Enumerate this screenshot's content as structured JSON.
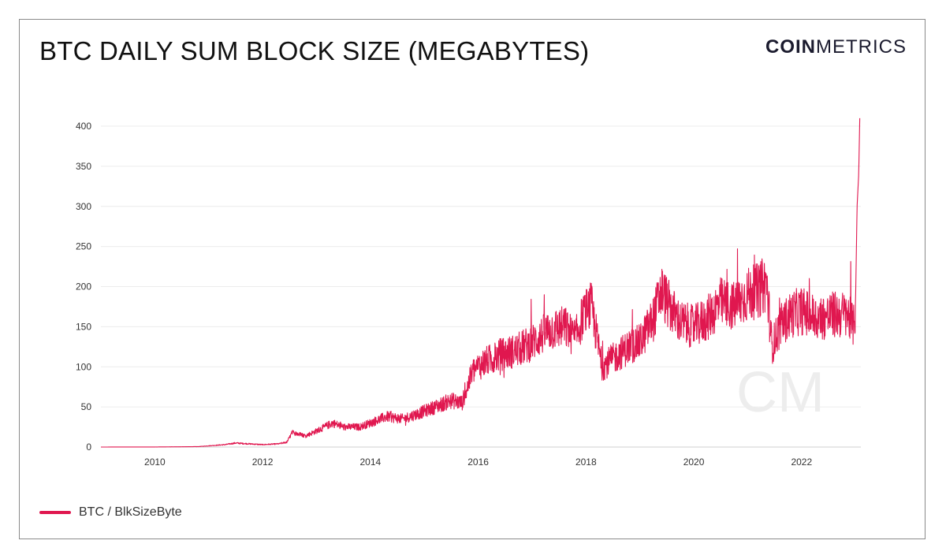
{
  "header": {
    "title": "BTC DAILY SUM BLOCK SIZE (MEGABYTES)",
    "logo_bold": "COIN",
    "logo_light": "METRICS",
    "watermark": "CM"
  },
  "colors": {
    "series": "#e0174f",
    "grid": "#ececec",
    "axis_text": "#333333"
  },
  "legend": {
    "label": "BTC / BlkSizeByte"
  },
  "chart_data": {
    "type": "line",
    "title": "BTC DAILY SUM BLOCK SIZE (MEGABYTES)",
    "xlabel": "",
    "ylabel": "",
    "xlim": [
      2009.0,
      2023.1
    ],
    "ylim": [
      0,
      400
    ],
    "yticks": [
      0,
      50,
      100,
      150,
      200,
      250,
      300,
      350,
      400
    ],
    "xticks": [
      2010,
      2012,
      2014,
      2016,
      2018,
      2020,
      2022
    ],
    "grid": true,
    "legend_position": "bottom-left",
    "series": [
      {
        "name": "BTC / BlkSizeByte",
        "x": [
          2009.0,
          2010.0,
          2010.8,
          2011.3,
          2011.5,
          2012.0,
          2012.3,
          2012.45,
          2012.55,
          2012.8,
          2013.0,
          2013.3,
          2013.5,
          2013.8,
          2014.0,
          2014.3,
          2014.6,
          2014.9,
          2015.2,
          2015.5,
          2015.7,
          2015.9,
          2016.1,
          2016.4,
          2016.7,
          2017.0,
          2017.3,
          2017.6,
          2017.8,
          2017.95,
          2018.1,
          2018.3,
          2018.5,
          2018.8,
          2019.0,
          2019.25,
          2019.4,
          2019.55,
          2019.75,
          2020.0,
          2020.25,
          2020.5,
          2020.75,
          2021.0,
          2021.2,
          2021.35,
          2021.45,
          2021.6,
          2021.8,
          2022.0,
          2022.3,
          2022.6,
          2022.85,
          2022.97,
          2023.0,
          2023.03,
          2023.06,
          2023.08
        ],
        "values": [
          0,
          0.1,
          0.5,
          3,
          5,
          3,
          4,
          6,
          18,
          14,
          20,
          30,
          25,
          25,
          30,
          38,
          35,
          42,
          50,
          58,
          55,
          95,
          105,
          115,
          120,
          130,
          145,
          150,
          135,
          165,
          175,
          100,
          110,
          125,
          130,
          160,
          195,
          175,
          155,
          150,
          160,
          180,
          175,
          190,
          195,
          205,
          125,
          150,
          165,
          170,
          160,
          165,
          165,
          150,
          175,
          300,
          340,
          410
        ]
      }
    ]
  }
}
